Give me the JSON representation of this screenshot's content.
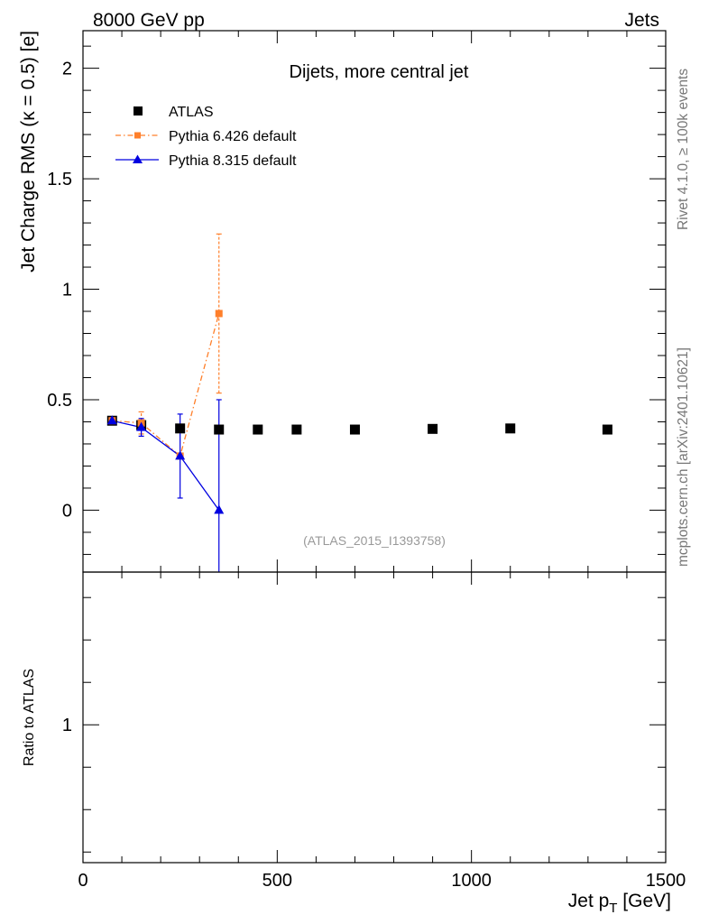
{
  "header": {
    "left": "8000 GeV pp",
    "right": "Jets"
  },
  "side_text": {
    "rivet": "Rivet 4.1.0, ≥ 100k events",
    "mcplots": "mcplots.cern.ch [arXiv:2401.10621]"
  },
  "chart_data": [
    {
      "type": "scatter",
      "panel": "main",
      "title": "Dijets, more central jet",
      "analysis_label": "(ATLAS_2015_I1393758)",
      "xlabel": "Jet p_T [GeV]",
      "ylabel": "Jet Charge RMS (κ = 0.5) [e]",
      "xlim": [
        0,
        1500
      ],
      "ylim": [
        -0.28,
        2.17
      ],
      "yticks": [
        0,
        0.5,
        1,
        1.5,
        2
      ],
      "ytick_labels": [
        "0",
        "0.5",
        "1",
        "1.5",
        "2"
      ],
      "legend_position": "top-left",
      "series": [
        {
          "name": "ATLAS",
          "style": "data",
          "color": "#000000",
          "marker": "square",
          "x": [
            75,
            150,
            250,
            350,
            450,
            550,
            700,
            900,
            1100,
            1350
          ],
          "y": [
            0.405,
            0.385,
            0.37,
            0.365,
            0.365,
            0.365,
            0.365,
            0.368,
            0.37,
            0.365
          ]
        },
        {
          "name": "Pythia 6.426 default",
          "style": "mc",
          "color": "#ff7f2a",
          "marker": "square",
          "line": "dashdot",
          "x": [
            75,
            150,
            250,
            350
          ],
          "y": [
            0.405,
            0.395,
            0.245,
            0.89
          ],
          "err_low": [
            0.01,
            0.05,
            0.01,
            0.36
          ],
          "err_high": [
            0.01,
            0.05,
            0.01,
            0.36
          ]
        },
        {
          "name": "Pythia 8.315 default",
          "style": "mc",
          "color": "#0000e0",
          "marker": "triangle",
          "line": "solid",
          "x": [
            75,
            150,
            250,
            350
          ],
          "y": [
            0.405,
            0.375,
            0.245,
            0.0
          ],
          "err_low": [
            0.015,
            0.04,
            0.19,
            0.5
          ],
          "err_high": [
            0.015,
            0.04,
            0.19,
            0.5
          ]
        }
      ]
    },
    {
      "type": "scatter",
      "panel": "ratio",
      "ylabel": "Ratio to ATLAS",
      "xlabel": "Jet p_T [GeV]",
      "xlim": [
        0,
        1500
      ],
      "ylim": [
        0.35,
        1.72
      ],
      "yticks": [
        1
      ],
      "ytick_labels": [
        "1"
      ],
      "xticks": [
        0,
        500,
        1000,
        1500
      ],
      "xtick_labels": [
        "0",
        "500",
        "1000",
        "1500"
      ],
      "series": []
    }
  ]
}
